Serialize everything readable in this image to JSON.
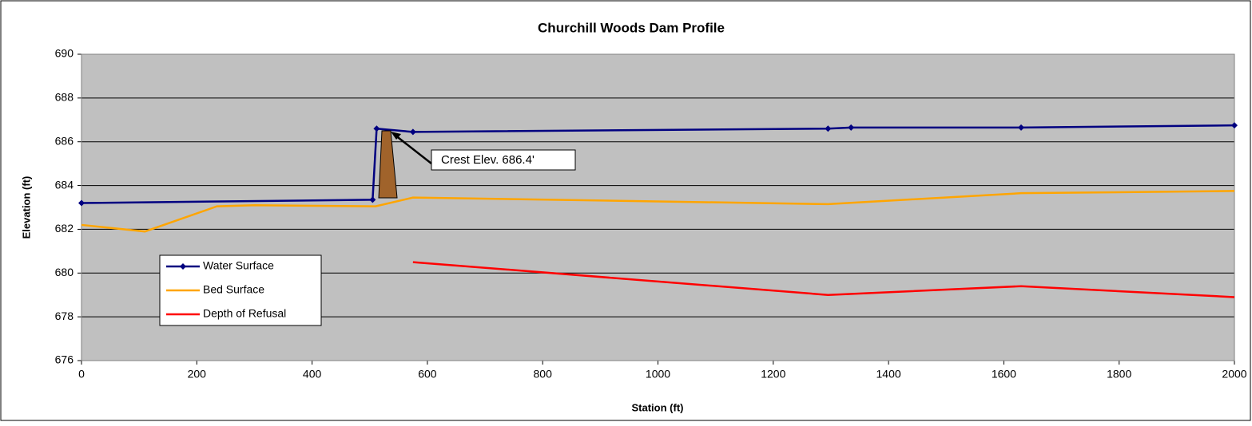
{
  "chart_data": {
    "type": "line",
    "title": "Churchill Woods Dam Profile",
    "x_label": "Station (ft)",
    "y_label": "Elevation (ft)",
    "xlim": [
      0,
      2000
    ],
    "xticks": [
      0,
      200,
      400,
      600,
      800,
      1000,
      1200,
      1400,
      1600,
      1800,
      2000
    ],
    "ylim": [
      676,
      690
    ],
    "yticks": [
      676,
      678,
      680,
      682,
      684,
      686,
      688,
      690
    ],
    "grid": true,
    "legend": "left",
    "annotation": "Crest Elev. 686.4'",
    "series": [
      {
        "name": "Water Surface",
        "color": "#000080",
        "markers": true,
        "x": [
          0,
          505,
          512,
          575,
          1295,
          1335,
          1630,
          2000
        ],
        "values": [
          683.2,
          683.35,
          686.6,
          686.45,
          686.6,
          686.65,
          686.65,
          686.75
        ]
      },
      {
        "name": "Bed Surface",
        "color": "#FFA500",
        "markers": false,
        "x": [
          0,
          110,
          235,
          300,
          510,
          575,
          1295,
          1630,
          2000
        ],
        "values": [
          682.2,
          681.9,
          683.05,
          683.1,
          683.05,
          683.45,
          683.15,
          683.65,
          683.75
        ]
      },
      {
        "name": "Depth of Refusal",
        "color": "#FF0000",
        "markers": false,
        "x": [
          575,
          1295,
          1630,
          2000
        ],
        "values": [
          680.5,
          679.0,
          679.4,
          678.9
        ]
      }
    ]
  }
}
